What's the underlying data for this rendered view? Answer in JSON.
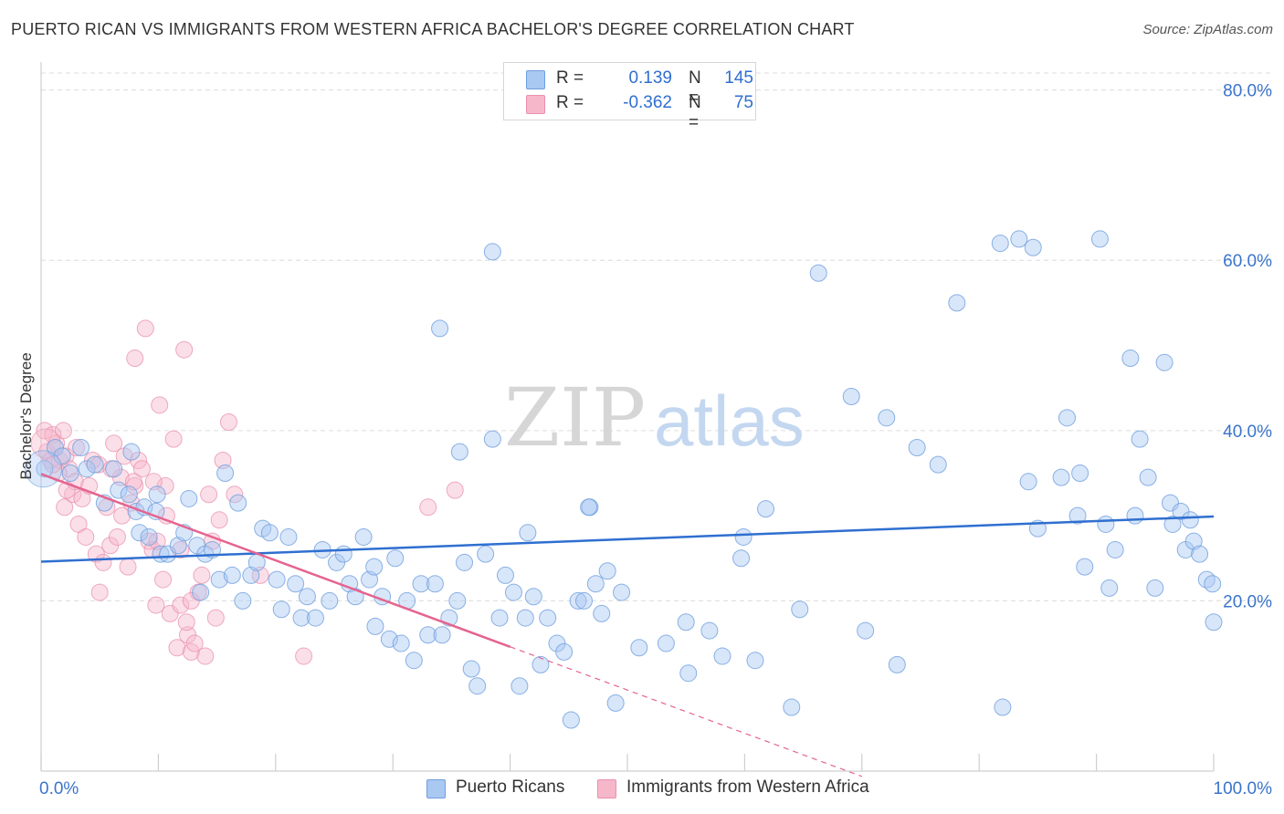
{
  "title": "PUERTO RICAN VS IMMIGRANTS FROM WESTERN AFRICA BACHELOR'S DEGREE CORRELATION CHART",
  "source": "Source: ZipAtlas.com",
  "watermark": {
    "part1": "ZIP",
    "part2": "atlas"
  },
  "legend": {
    "r_label": "R =",
    "n_label": "N =",
    "rows": [
      {
        "r_value": "0.139",
        "n_value": "145",
        "color": "#a9c8f2"
      },
      {
        "r_value": "-0.362",
        "n_value": "75",
        "color": "#f7b7cb"
      }
    ]
  },
  "bottom_legend": [
    {
      "label": "Puerto Ricans",
      "color": "#a9c8f2"
    },
    {
      "label": "Immigrants from Western Africa",
      "color": "#f7b7cb"
    }
  ],
  "chart_data": {
    "type": "scatter",
    "ylabel": "Bachelor's Degree",
    "xlabel": "",
    "x_tick_labels": [
      "0.0%",
      "100.0%"
    ],
    "y_tick_labels": [
      "20.0%",
      "40.0%",
      "60.0%",
      "80.0%"
    ],
    "xlim": [
      0,
      100
    ],
    "ylim": [
      0,
      82
    ],
    "grid": true,
    "colors": {
      "blue_fill": "#a9c8f2",
      "blue_stroke": "#6f9fdf",
      "blue_line": "#2f6fd0",
      "pink_fill": "#f7b7cb",
      "pink_stroke": "#e98fac",
      "pink_line": "#e5648f",
      "tick_text": "#3a74cc"
    },
    "series": [
      {
        "name": "Puerto Ricans",
        "trend": {
          "x0": 0,
          "y0": 24.6,
          "x1": 100,
          "y1": 29.9
        },
        "points": [
          [
            0.3,
            35.5
          ],
          [
            1.2,
            38.0
          ],
          [
            1.8,
            37.0
          ],
          [
            2.5,
            35.0
          ],
          [
            3.4,
            38.0
          ],
          [
            3.9,
            35.5
          ],
          [
            4.6,
            36.0
          ],
          [
            5.4,
            31.5
          ],
          [
            6.2,
            35.5
          ],
          [
            6.6,
            33.0
          ],
          [
            7.5,
            32.5
          ],
          [
            7.7,
            37.5
          ],
          [
            8.1,
            30.5
          ],
          [
            8.4,
            28.0
          ],
          [
            8.8,
            31.0
          ],
          [
            9.2,
            27.5
          ],
          [
            9.8,
            30.5
          ],
          [
            10.2,
            25.5
          ],
          [
            10.8,
            25.5
          ],
          [
            11.7,
            26.5
          ],
          [
            12.2,
            28.0
          ],
          [
            12.6,
            32.0
          ],
          [
            13.3,
            26.5
          ],
          [
            13.6,
            21.0
          ],
          [
            14.0,
            25.5
          ],
          [
            14.6,
            26.0
          ],
          [
            15.2,
            22.5
          ],
          [
            15.7,
            35.0
          ],
          [
            16.3,
            23.0
          ],
          [
            16.8,
            31.5
          ],
          [
            17.2,
            20.0
          ],
          [
            17.9,
            23.0
          ],
          [
            18.4,
            24.5
          ],
          [
            18.9,
            28.5
          ],
          [
            19.5,
            28.0
          ],
          [
            20.1,
            22.5
          ],
          [
            20.5,
            19.0
          ],
          [
            21.1,
            27.5
          ],
          [
            21.7,
            22.0
          ],
          [
            22.2,
            18.0
          ],
          [
            22.7,
            20.5
          ],
          [
            23.4,
            18.0
          ],
          [
            24.0,
            26.0
          ],
          [
            24.6,
            20.0
          ],
          [
            25.2,
            24.5
          ],
          [
            25.8,
            25.5
          ],
          [
            26.3,
            22.0
          ],
          [
            26.8,
            20.5
          ],
          [
            27.5,
            27.5
          ],
          [
            28.0,
            22.5
          ],
          [
            28.5,
            17.0
          ],
          [
            29.1,
            20.5
          ],
          [
            29.7,
            15.5
          ],
          [
            30.2,
            25.0
          ],
          [
            30.7,
            15.0
          ],
          [
            31.2,
            20.0
          ],
          [
            31.8,
            13.0
          ],
          [
            32.4,
            22.0
          ],
          [
            33.0,
            16.0
          ],
          [
            33.6,
            22.0
          ],
          [
            34.2,
            16.0
          ],
          [
            34.8,
            18.0
          ],
          [
            35.5,
            20.0
          ],
          [
            36.1,
            24.5
          ],
          [
            36.7,
            12.0
          ],
          [
            37.2,
            10.0
          ],
          [
            37.9,
            25.5
          ],
          [
            38.5,
            39.0
          ],
          [
            39.1,
            18.0
          ],
          [
            39.6,
            23.0
          ],
          [
            40.3,
            21.0
          ],
          [
            40.8,
            10.0
          ],
          [
            41.3,
            18.0
          ],
          [
            42.0,
            20.5
          ],
          [
            42.6,
            12.5
          ],
          [
            43.2,
            18.0
          ],
          [
            44.0,
            15.0
          ],
          [
            44.6,
            14.0
          ],
          [
            45.2,
            6.0
          ],
          [
            45.8,
            20.0
          ],
          [
            46.3,
            20.0
          ],
          [
            46.8,
            31.0
          ],
          [
            47.3,
            22.0
          ],
          [
            47.8,
            18.5
          ],
          [
            48.3,
            23.5
          ],
          [
            49.0,
            8.0
          ],
          [
            49.5,
            21.0
          ],
          [
            51.0,
            14.5
          ],
          [
            53.3,
            15.0
          ],
          [
            55.2,
            11.5
          ],
          [
            57.0,
            16.5
          ],
          [
            58.1,
            13.5
          ],
          [
            59.9,
            27.5
          ],
          [
            60.9,
            13.0
          ],
          [
            64.0,
            7.5
          ],
          [
            64.7,
            19.0
          ],
          [
            66.3,
            58.5
          ],
          [
            69.1,
            44.0
          ],
          [
            70.3,
            16.5
          ],
          [
            72.1,
            41.5
          ],
          [
            74.7,
            38.0
          ],
          [
            76.5,
            36.0
          ],
          [
            78.1,
            55.0
          ],
          [
            81.8,
            62.0
          ],
          [
            82.0,
            7.5
          ],
          [
            83.4,
            62.5
          ],
          [
            84.6,
            61.5
          ],
          [
            85.0,
            28.5
          ],
          [
            87.0,
            34.5
          ],
          [
            87.5,
            41.5
          ],
          [
            88.4,
            30.0
          ],
          [
            89.0,
            24.0
          ],
          [
            90.3,
            62.5
          ],
          [
            90.8,
            29.0
          ],
          [
            91.1,
            21.5
          ],
          [
            91.6,
            26.0
          ],
          [
            92.9,
            48.5
          ],
          [
            93.3,
            30.0
          ],
          [
            93.7,
            39.0
          ],
          [
            94.4,
            34.5
          ],
          [
            95.0,
            21.5
          ],
          [
            95.8,
            48.0
          ],
          [
            96.3,
            31.5
          ],
          [
            96.5,
            29.0
          ],
          [
            97.2,
            30.5
          ],
          [
            97.6,
            26.0
          ],
          [
            98.0,
            29.5
          ],
          [
            98.3,
            27.0
          ],
          [
            98.8,
            25.5
          ],
          [
            99.4,
            22.5
          ],
          [
            99.9,
            22.0
          ],
          [
            100.0,
            17.5
          ],
          [
            34.0,
            52.0
          ],
          [
            46.7,
            31.0
          ],
          [
            59.7,
            25.0
          ],
          [
            61.8,
            30.8
          ],
          [
            38.5,
            61.0
          ],
          [
            28.4,
            24.0
          ],
          [
            35.7,
            37.5
          ],
          [
            73.0,
            12.5
          ],
          [
            88.6,
            35.0
          ],
          [
            41.5,
            28.0
          ],
          [
            55.0,
            17.5
          ],
          [
            9.9,
            32.5
          ],
          [
            84.2,
            34.0
          ]
        ]
      },
      {
        "name": "Immigrants from Western Africa",
        "trend": {
          "x0": 0,
          "y0": 34.9,
          "x1": 40,
          "y1": 14.6,
          "dash_to_x": 70
        },
        "points": [
          [
            0.3,
            40.0
          ],
          [
            0.5,
            37.5
          ],
          [
            0.8,
            36.5
          ],
          [
            1.0,
            39.5
          ],
          [
            1.3,
            38.5
          ],
          [
            1.6,
            36.5
          ],
          [
            1.9,
            40.0
          ],
          [
            2.1,
            37.0
          ],
          [
            2.4,
            35.5
          ],
          [
            2.7,
            32.5
          ],
          [
            2.9,
            34.0
          ],
          [
            3.2,
            29.0
          ],
          [
            3.5,
            32.0
          ],
          [
            3.8,
            27.5
          ],
          [
            4.1,
            33.5
          ],
          [
            4.4,
            36.5
          ],
          [
            4.7,
            25.5
          ],
          [
            5.0,
            21.0
          ],
          [
            5.3,
            24.5
          ],
          [
            5.6,
            31.0
          ],
          [
            5.9,
            26.5
          ],
          [
            6.2,
            38.5
          ],
          [
            6.5,
            27.5
          ],
          [
            6.8,
            34.5
          ],
          [
            7.1,
            37.0
          ],
          [
            7.4,
            24.0
          ],
          [
            7.7,
            31.5
          ],
          [
            8.0,
            33.5
          ],
          [
            8.3,
            36.5
          ],
          [
            8.6,
            35.5
          ],
          [
            8.9,
            52.0
          ],
          [
            9.2,
            27.0
          ],
          [
            9.5,
            26.0
          ],
          [
            9.8,
            19.5
          ],
          [
            10.1,
            43.0
          ],
          [
            10.4,
            22.5
          ],
          [
            10.7,
            30.0
          ],
          [
            11.0,
            18.5
          ],
          [
            11.3,
            39.0
          ],
          [
            11.6,
            14.5
          ],
          [
            11.9,
            19.5
          ],
          [
            12.2,
            49.5
          ],
          [
            12.5,
            16.0
          ],
          [
            12.8,
            14.0
          ],
          [
            13.1,
            15.0
          ],
          [
            13.4,
            21.0
          ],
          [
            13.7,
            23.0
          ],
          [
            14.0,
            13.5
          ],
          [
            14.3,
            32.5
          ],
          [
            14.6,
            27.0
          ],
          [
            14.9,
            18.0
          ],
          [
            15.2,
            29.5
          ],
          [
            15.5,
            36.5
          ],
          [
            16.0,
            41.0
          ],
          [
            16.5,
            32.5
          ],
          [
            8.0,
            48.5
          ],
          [
            9.9,
            27.0
          ],
          [
            22.4,
            13.5
          ],
          [
            33.0,
            31.0
          ],
          [
            35.3,
            33.0
          ],
          [
            3.0,
            38.0
          ],
          [
            4.9,
            36.0
          ],
          [
            6.9,
            30.0
          ],
          [
            7.9,
            34.0
          ],
          [
            10.6,
            33.5
          ],
          [
            11.9,
            26.0
          ],
          [
            12.8,
            20.0
          ],
          [
            1.5,
            35.0
          ],
          [
            2.2,
            33.0
          ],
          [
            6.0,
            35.5
          ],
          [
            18.7,
            23.0
          ],
          [
            12.4,
            17.5
          ],
          [
            9.6,
            34.0
          ],
          [
            1.0,
            36.0
          ],
          [
            2.0,
            31.0
          ]
        ]
      }
    ]
  }
}
